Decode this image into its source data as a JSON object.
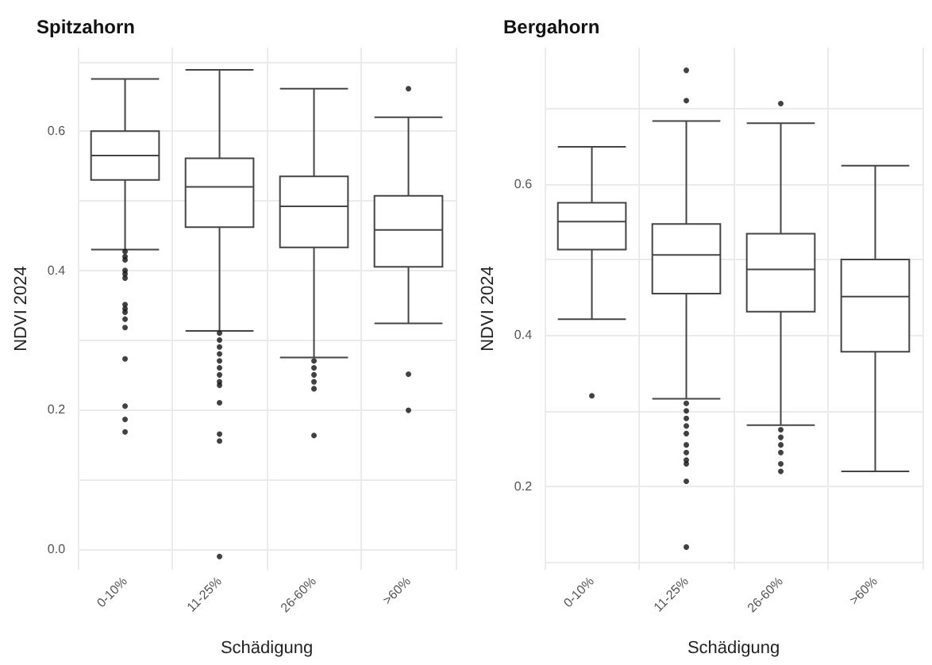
{
  "chart_data": [
    {
      "type": "box",
      "title": "Spitzahorn",
      "xlabel": "Schädigung",
      "ylabel": "NDVI 2024",
      "categories": [
        "0-10%",
        "11-25%",
        "26-60%",
        ">60%"
      ],
      "ylim": [
        -0.03,
        0.72
      ],
      "yticks": [
        {
          "value": 0,
          "label": "0.0"
        },
        {
          "value": 0.1,
          "label": null
        },
        {
          "value": 0.2,
          "label": "0.2"
        },
        {
          "value": 0.3,
          "label": null
        },
        {
          "value": 0.4,
          "label": "0.4"
        },
        {
          "value": 0.5,
          "label": null
        },
        {
          "value": 0.6,
          "label": "0.6"
        },
        {
          "value": 0.7,
          "label": null
        }
      ],
      "grid": true,
      "boxes": [
        {
          "low": 0.43,
          "q1": 0.53,
          "median": 0.565,
          "q3": 0.6,
          "high": 0.675,
          "outliers": [
            0.427,
            0.42,
            0.415,
            0.4,
            0.395,
            0.389,
            0.351,
            0.345,
            0.34,
            0.33,
            0.318,
            0.273,
            0.205,
            0.186,
            0.168
          ]
        },
        {
          "low": 0.313,
          "q1": 0.462,
          "median": 0.52,
          "q3": 0.561,
          "high": 0.688,
          "outliers": [
            0.31,
            0.3,
            0.29,
            0.28,
            0.27,
            0.26,
            0.25,
            0.24,
            0.235,
            0.21,
            0.165,
            0.155,
            -0.011
          ]
        },
        {
          "low": 0.275,
          "q1": 0.433,
          "median": 0.492,
          "q3": 0.535,
          "high": 0.661,
          "outliers": [
            0.27,
            0.26,
            0.25,
            0.24,
            0.23,
            0.163
          ]
        },
        {
          "low": 0.324,
          "q1": 0.405,
          "median": 0.458,
          "q3": 0.507,
          "high": 0.62,
          "outliers": [
            0.661,
            0.251,
            0.199
          ]
        }
      ]
    },
    {
      "type": "box",
      "title": "Bergahorn",
      "xlabel": "Schädigung",
      "ylabel": "NDVI 2024",
      "categories": [
        "0-10%",
        "11-25%",
        "26-60%",
        ">60%"
      ],
      "ylim": [
        0.09,
        0.78
      ],
      "yticks": [
        {
          "value": 0.1,
          "label": null
        },
        {
          "value": 0.2,
          "label": "0.2"
        },
        {
          "value": 0.3,
          "label": null
        },
        {
          "value": 0.4,
          "label": "0.4"
        },
        {
          "value": 0.5,
          "label": null
        },
        {
          "value": 0.6,
          "label": "0.6"
        },
        {
          "value": 0.7,
          "label": null
        }
      ],
      "grid": true,
      "boxes": [
        {
          "low": 0.421,
          "q1": 0.513,
          "median": 0.55,
          "q3": 0.575,
          "high": 0.649,
          "outliers": [
            0.32
          ]
        },
        {
          "low": 0.316,
          "q1": 0.455,
          "median": 0.506,
          "q3": 0.547,
          "high": 0.683,
          "outliers": [
            0.75,
            0.71,
            0.31,
            0.3,
            0.29,
            0.28,
            0.27,
            0.255,
            0.245,
            0.235,
            0.23,
            0.207,
            0.12
          ]
        },
        {
          "low": 0.281,
          "q1": 0.431,
          "median": 0.487,
          "q3": 0.534,
          "high": 0.68,
          "outliers": [
            0.706,
            0.275,
            0.265,
            0.255,
            0.245,
            0.23,
            0.22
          ]
        },
        {
          "low": 0.22,
          "q1": 0.378,
          "median": 0.451,
          "q3": 0.5,
          "high": 0.624
        }
      ]
    }
  ]
}
